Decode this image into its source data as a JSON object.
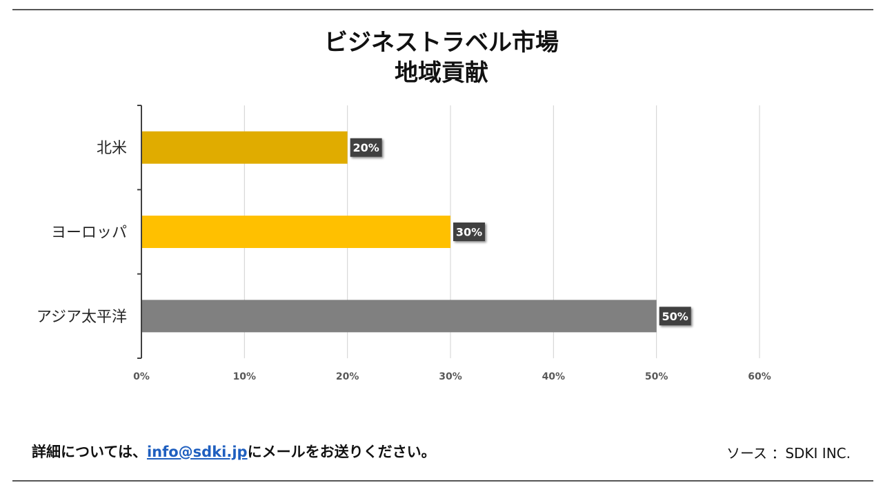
{
  "chart_data": {
    "type": "bar",
    "orientation": "horizontal",
    "title_line1": "ビジネストラベル市場",
    "title_line2": "地域貢献",
    "categories": [
      "北米",
      "ヨーロッパ",
      "アジア太平洋"
    ],
    "values": [
      20,
      30,
      50
    ],
    "value_labels": [
      "20%",
      "30%",
      "50%"
    ],
    "bar_colors": [
      "#e0ac00",
      "#ffc000",
      "#808080"
    ],
    "xlim": [
      0,
      60
    ],
    "x_ticks": [
      0,
      10,
      20,
      30,
      40,
      50,
      60
    ],
    "x_tick_labels": [
      "0%",
      "10%",
      "20%",
      "30%",
      "40%",
      "50%",
      "60%"
    ],
    "grid": true
  },
  "footer": {
    "contact_prefix": "詳細については、",
    "email": "info@sdki.jp",
    "contact_suffix": "にメールをお送りください。",
    "source": "ソース ：SDKI INC."
  }
}
